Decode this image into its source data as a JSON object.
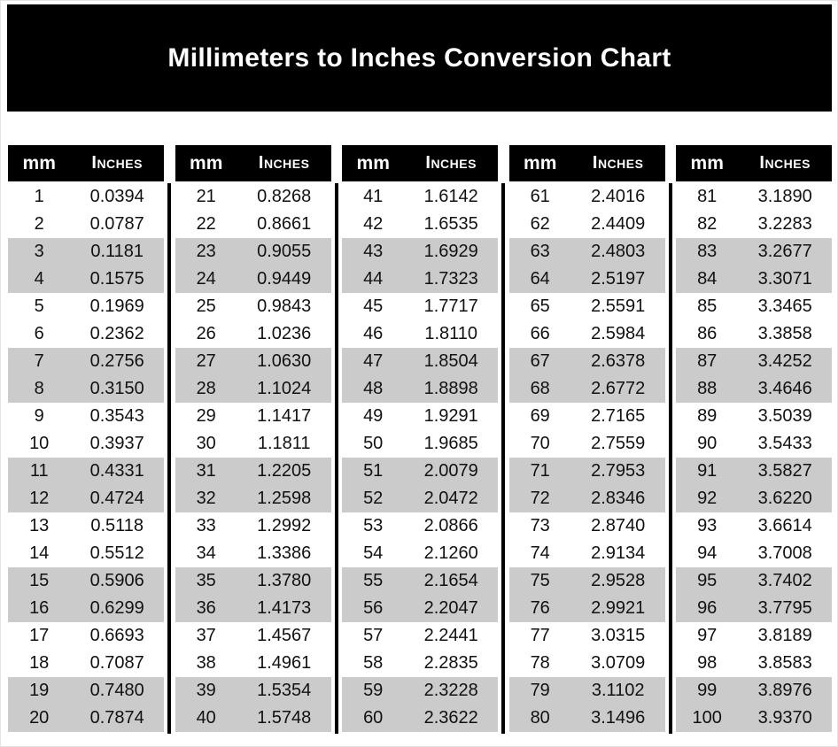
{
  "title": "Millimeters to Inches Conversion Chart",
  "column_headers": {
    "mm": "mm",
    "inches": "Inches"
  },
  "colors": {
    "title_bg": "#000000",
    "title_text": "#ffffff",
    "header_bg": "#000000",
    "header_text": "#ffffff",
    "alt_row_bg": "#cbcbcb",
    "divider": "#000000",
    "body_text": "#111111",
    "page_bg": "#ffffff"
  },
  "tables": [
    {
      "rows": [
        {
          "mm": "1",
          "inches": "0.0394"
        },
        {
          "mm": "2",
          "inches": "0.0787"
        },
        {
          "mm": "3",
          "inches": "0.1181"
        },
        {
          "mm": "4",
          "inches": "0.1575"
        },
        {
          "mm": "5",
          "inches": "0.1969"
        },
        {
          "mm": "6",
          "inches": "0.2362"
        },
        {
          "mm": "7",
          "inches": "0.2756"
        },
        {
          "mm": "8",
          "inches": "0.3150"
        },
        {
          "mm": "9",
          "inches": "0.3543"
        },
        {
          "mm": "10",
          "inches": "0.3937"
        },
        {
          "mm": "11",
          "inches": "0.4331"
        },
        {
          "mm": "12",
          "inches": "0.4724"
        },
        {
          "mm": "13",
          "inches": "0.5118"
        },
        {
          "mm": "14",
          "inches": "0.5512"
        },
        {
          "mm": "15",
          "inches": "0.5906"
        },
        {
          "mm": "16",
          "inches": "0.6299"
        },
        {
          "mm": "17",
          "inches": "0.6693"
        },
        {
          "mm": "18",
          "inches": "0.7087"
        },
        {
          "mm": "19",
          "inches": "0.7480"
        },
        {
          "mm": "20",
          "inches": "0.7874"
        }
      ]
    },
    {
      "rows": [
        {
          "mm": "21",
          "inches": "0.8268"
        },
        {
          "mm": "22",
          "inches": "0.8661"
        },
        {
          "mm": "23",
          "inches": "0.9055"
        },
        {
          "mm": "24",
          "inches": "0.9449"
        },
        {
          "mm": "25",
          "inches": "0.9843"
        },
        {
          "mm": "26",
          "inches": "1.0236"
        },
        {
          "mm": "27",
          "inches": "1.0630"
        },
        {
          "mm": "28",
          "inches": "1.1024"
        },
        {
          "mm": "29",
          "inches": "1.1417"
        },
        {
          "mm": "30",
          "inches": "1.1811"
        },
        {
          "mm": "31",
          "inches": "1.2205"
        },
        {
          "mm": "32",
          "inches": "1.2598"
        },
        {
          "mm": "33",
          "inches": "1.2992"
        },
        {
          "mm": "34",
          "inches": "1.3386"
        },
        {
          "mm": "35",
          "inches": "1.3780"
        },
        {
          "mm": "36",
          "inches": "1.4173"
        },
        {
          "mm": "37",
          "inches": "1.4567"
        },
        {
          "mm": "38",
          "inches": "1.4961"
        },
        {
          "mm": "39",
          "inches": "1.5354"
        },
        {
          "mm": "40",
          "inches": "1.5748"
        }
      ]
    },
    {
      "rows": [
        {
          "mm": "41",
          "inches": "1.6142"
        },
        {
          "mm": "42",
          "inches": "1.6535"
        },
        {
          "mm": "43",
          "inches": "1.6929"
        },
        {
          "mm": "44",
          "inches": "1.7323"
        },
        {
          "mm": "45",
          "inches": "1.7717"
        },
        {
          "mm": "46",
          "inches": "1.8110"
        },
        {
          "mm": "47",
          "inches": "1.8504"
        },
        {
          "mm": "48",
          "inches": "1.8898"
        },
        {
          "mm": "49",
          "inches": "1.9291"
        },
        {
          "mm": "50",
          "inches": "1.9685"
        },
        {
          "mm": "51",
          "inches": "2.0079"
        },
        {
          "mm": "52",
          "inches": "2.0472"
        },
        {
          "mm": "53",
          "inches": "2.0866"
        },
        {
          "mm": "54",
          "inches": "2.1260"
        },
        {
          "mm": "55",
          "inches": "2.1654"
        },
        {
          "mm": "56",
          "inches": "2.2047"
        },
        {
          "mm": "57",
          "inches": "2.2441"
        },
        {
          "mm": "58",
          "inches": "2.2835"
        },
        {
          "mm": "59",
          "inches": "2.3228"
        },
        {
          "mm": "60",
          "inches": "2.3622"
        }
      ]
    },
    {
      "rows": [
        {
          "mm": "61",
          "inches": "2.4016"
        },
        {
          "mm": "62",
          "inches": "2.4409"
        },
        {
          "mm": "63",
          "inches": "2.4803"
        },
        {
          "mm": "64",
          "inches": "2.5197"
        },
        {
          "mm": "65",
          "inches": "2.5591"
        },
        {
          "mm": "66",
          "inches": "2.5984"
        },
        {
          "mm": "67",
          "inches": "2.6378"
        },
        {
          "mm": "68",
          "inches": "2.6772"
        },
        {
          "mm": "69",
          "inches": "2.7165"
        },
        {
          "mm": "70",
          "inches": "2.7559"
        },
        {
          "mm": "71",
          "inches": "2.7953"
        },
        {
          "mm": "72",
          "inches": "2.8346"
        },
        {
          "mm": "73",
          "inches": "2.8740"
        },
        {
          "mm": "74",
          "inches": "2.9134"
        },
        {
          "mm": "75",
          "inches": "2.9528"
        },
        {
          "mm": "76",
          "inches": "2.9921"
        },
        {
          "mm": "77",
          "inches": "3.0315"
        },
        {
          "mm": "78",
          "inches": "3.0709"
        },
        {
          "mm": "79",
          "inches": "3.1102"
        },
        {
          "mm": "80",
          "inches": "3.1496"
        }
      ]
    },
    {
      "rows": [
        {
          "mm": "81",
          "inches": "3.1890"
        },
        {
          "mm": "82",
          "inches": "3.2283"
        },
        {
          "mm": "83",
          "inches": "3.2677"
        },
        {
          "mm": "84",
          "inches": "3.3071"
        },
        {
          "mm": "85",
          "inches": "3.3465"
        },
        {
          "mm": "86",
          "inches": "3.3858"
        },
        {
          "mm": "87",
          "inches": "3.4252"
        },
        {
          "mm": "88",
          "inches": "3.4646"
        },
        {
          "mm": "89",
          "inches": "3.5039"
        },
        {
          "mm": "90",
          "inches": "3.5433"
        },
        {
          "mm": "91",
          "inches": "3.5827"
        },
        {
          "mm": "92",
          "inches": "3.6220"
        },
        {
          "mm": "93",
          "inches": "3.6614"
        },
        {
          "mm": "94",
          "inches": "3.7008"
        },
        {
          "mm": "95",
          "inches": "3.7402"
        },
        {
          "mm": "96",
          "inches": "3.7795"
        },
        {
          "mm": "97",
          "inches": "3.8189"
        },
        {
          "mm": "98",
          "inches": "3.8583"
        },
        {
          "mm": "99",
          "inches": "3.8976"
        },
        {
          "mm": "100",
          "inches": "3.9370"
        }
      ]
    }
  ]
}
